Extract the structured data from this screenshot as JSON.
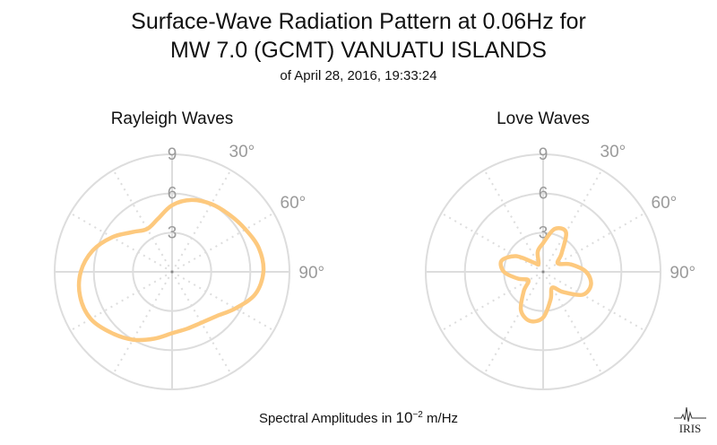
{
  "title_line1": "Surface-Wave Radiation Pattern at 0.06Hz for",
  "title_line2": "MW 7.0 (GCMT) VANUATU ISLANDS",
  "subtitle": "of April 28, 2016, 19:33:24",
  "footer": {
    "prefix": "Spectral Amplitudes in ",
    "base": "10",
    "exponent": "−2",
    "unit": " m/Hz"
  },
  "logo_text": "IRIS",
  "colors": {
    "pattern": "#fdc97e",
    "grid": "#dddddd",
    "tick": "#9a9a9a"
  },
  "chart_data": [
    {
      "type": "polar-line",
      "title": "Rayleigh Waves",
      "radial_ticks": [
        "3",
        "6",
        "9"
      ],
      "radial_tick_values": [
        3,
        6,
        9
      ],
      "rmax": 9,
      "angle_ticks": [
        "30°",
        "60°",
        "90°"
      ],
      "angle_tick_values": [
        30,
        60,
        90
      ],
      "grid": true,
      "azimuth_deg": [
        0,
        15,
        30,
        45,
        60,
        75,
        90,
        105,
        120,
        135,
        150,
        165,
        180,
        195,
        210,
        225,
        240,
        255,
        270,
        285,
        300,
        315,
        330,
        345
      ],
      "amplitude": [
        5.1,
        5.7,
        6.0,
        6.2,
        6.5,
        6.9,
        7.0,
        6.6,
        5.6,
        4.8,
        4.5,
        4.5,
        4.7,
        5.3,
        6.0,
        6.6,
        7.2,
        7.3,
        7.0,
        6.3,
        5.3,
        4.3,
        3.8,
        4.2
      ]
    },
    {
      "type": "polar-line",
      "title": "Love Waves",
      "radial_ticks": [
        "3",
        "6",
        "9"
      ],
      "radial_tick_values": [
        3,
        6,
        9
      ],
      "rmax": 9,
      "angle_ticks": [
        "30°",
        "60°",
        "90°"
      ],
      "angle_tick_values": [
        30,
        60,
        90
      ],
      "grid": true,
      "azimuth_deg": [
        0,
        15,
        30,
        45,
        60,
        75,
        90,
        105,
        120,
        135,
        150,
        165,
        180,
        195,
        210,
        225,
        240,
        255,
        270,
        285,
        300,
        315,
        330,
        345
      ],
      "amplitude": [
        2.2,
        3.4,
        3.5,
        2.0,
        1.3,
        2.2,
        3.3,
        3.8,
        3.5,
        2.2,
        1.4,
        2.2,
        3.5,
        3.9,
        3.4,
        2.1,
        1.3,
        2.0,
        3.0,
        3.3,
        2.4,
        1.0,
        0.7,
        1.6
      ]
    }
  ]
}
